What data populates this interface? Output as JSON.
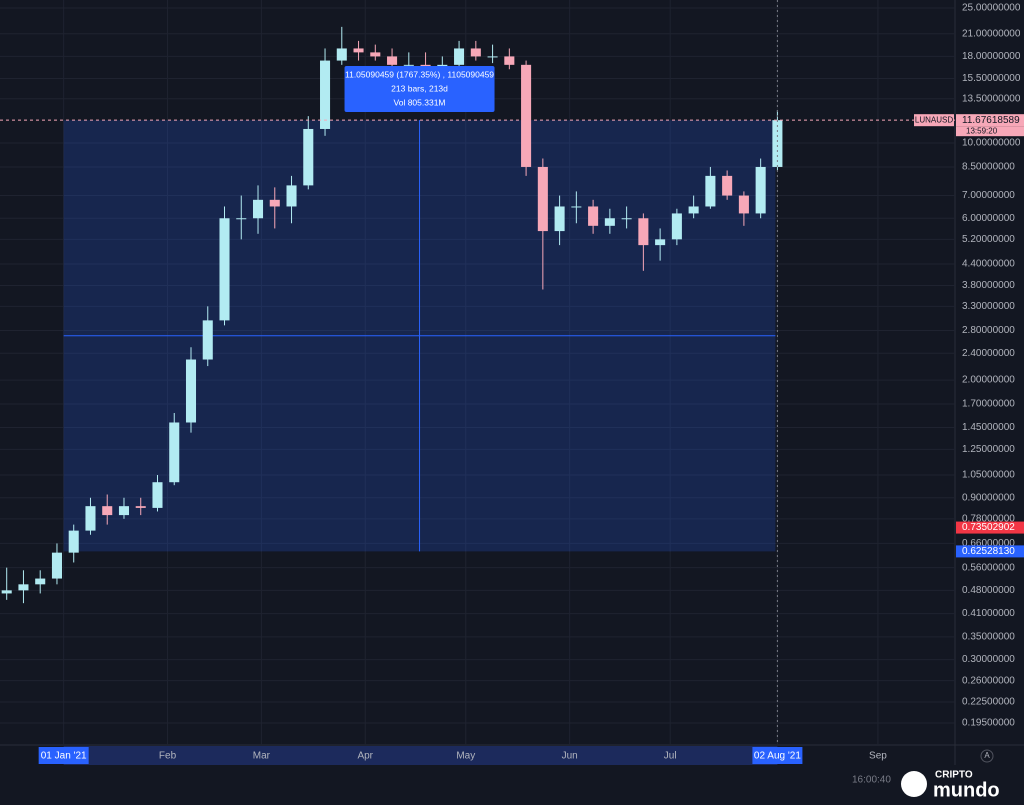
{
  "chart_data": {
    "type": "candlestick",
    "symbol": "LUNAUSD",
    "log_scale": true,
    "grid": true,
    "up_color": "#b2ebf2",
    "down_color": "#f7a8b8",
    "x": [
      "2020-12-15",
      "2020-12-20",
      "2020-12-25",
      "2020-12-30",
      "2021-01-04",
      "2021-01-09",
      "2021-01-14",
      "2021-01-19",
      "2021-01-24",
      "2021-01-29",
      "2021-02-03",
      "2021-02-08",
      "2021-02-13",
      "2021-02-18",
      "2021-02-23",
      "2021-02-28",
      "2021-03-05",
      "2021-03-10",
      "2021-03-15",
      "2021-03-20",
      "2021-03-25",
      "2021-03-30",
      "2021-04-04",
      "2021-04-09",
      "2021-04-14",
      "2021-04-19",
      "2021-04-24",
      "2021-04-29",
      "2021-05-04",
      "2021-05-09",
      "2021-05-14",
      "2021-05-19",
      "2021-05-24",
      "2021-05-29",
      "2021-06-03",
      "2021-06-08",
      "2021-06-13",
      "2021-06-18",
      "2021-06-23",
      "2021-06-28",
      "2021-07-03",
      "2021-07-08",
      "2021-07-13",
      "2021-07-18",
      "2021-07-23",
      "2021-07-28",
      "2021-08-02"
    ],
    "open": [
      0.47,
      0.48,
      0.5,
      0.52,
      0.62,
      0.72,
      0.85,
      0.8,
      0.85,
      0.84,
      1,
      1.5,
      2.3,
      3,
      6,
      6,
      6.8,
      6.5,
      7.5,
      11,
      17.5,
      19,
      18.5,
      18,
      17,
      17,
      16.5,
      17,
      19,
      18,
      18,
      17,
      8.5,
      5.5,
      6.5,
      6.5,
      5.7,
      6,
      6,
      5,
      5.2,
      6.2,
      6.5,
      8,
      7,
      6.2,
      8.5
    ],
    "high": [
      0.56,
      0.55,
      0.55,
      0.66,
      0.75,
      0.9,
      0.92,
      0.9,
      0.9,
      1.05,
      1.6,
      2.5,
      3.3,
      6.5,
      7,
      7.5,
      7.4,
      8,
      12,
      19,
      22,
      20,
      19.5,
      19,
      18.5,
      18.5,
      18,
      20,
      20,
      19.5,
      19,
      17.5,
      9,
      7,
      7.2,
      6.8,
      6.4,
      6.5,
      6.2,
      5.6,
      6.4,
      7,
      8.5,
      8.3,
      7.2,
      9,
      12.5
    ],
    "low": [
      0.45,
      0.44,
      0.47,
      0.5,
      0.58,
      0.7,
      0.75,
      0.78,
      0.8,
      0.82,
      0.98,
      1.4,
      2.2,
      2.9,
      5.2,
      5.4,
      5.6,
      5.8,
      7.3,
      10.5,
      17,
      17.5,
      17.5,
      16.5,
      16.3,
      16,
      16.2,
      16.8,
      17.5,
      17.2,
      16.5,
      8,
      3.7,
      5,
      5.8,
      5.4,
      5.4,
      5.6,
      4.2,
      4.5,
      5,
      6,
      6.4,
      6.8,
      5.7,
      6,
      8.3
    ],
    "close": [
      0.48,
      0.5,
      0.52,
      0.62,
      0.72,
      0.85,
      0.8,
      0.85,
      0.84,
      1,
      1.5,
      2.3,
      3,
      6,
      6,
      6.8,
      6.5,
      7.5,
      11,
      17.5,
      19,
      18.5,
      18,
      17,
      17,
      16.5,
      17,
      19,
      18,
      18,
      17,
      8.5,
      5.5,
      6.5,
      6.5,
      5.7,
      6,
      6,
      5,
      5.2,
      6.2,
      6.5,
      8,
      7,
      6.2,
      8.5,
      11.68
    ],
    "xlim": [
      "2020-12-13",
      "2021-09-24"
    ],
    "xticks": [
      {
        "value": "2021-01-01",
        "label": "01 Jan '21"
      },
      {
        "value": "2021-02-01",
        "label": "Feb"
      },
      {
        "value": "2021-03-01",
        "label": "Mar"
      },
      {
        "value": "2021-04-01",
        "label": "Apr"
      },
      {
        "value": "2021-05-01",
        "label": "May"
      },
      {
        "value": "2021-06-01",
        "label": "Jun"
      },
      {
        "value": "2021-07-01",
        "label": "Jul"
      },
      {
        "value": "2021-08-02",
        "label": "02 Aug '21"
      },
      {
        "value": "2021-09-01",
        "label": "Sep"
      }
    ],
    "ylim": [
      0.168,
      26.4
    ],
    "yticks": [
      {
        "value": 25,
        "label": "25.00000000"
      },
      {
        "value": 21,
        "label": "21.00000000"
      },
      {
        "value": 18,
        "label": "18.00000000"
      },
      {
        "value": 15.5,
        "label": "15.50000000"
      },
      {
        "value": 13.5,
        "label": "13.50000000"
      },
      {
        "value": 10,
        "label": "10.00000000"
      },
      {
        "value": 8.5,
        "label": "8.50000000"
      },
      {
        "value": 7,
        "label": "7.00000000"
      },
      {
        "value": 6,
        "label": "6.00000000"
      },
      {
        "value": 5.2,
        "label": "5.20000000"
      },
      {
        "value": 4.4,
        "label": "4.40000000"
      },
      {
        "value": 3.8,
        "label": "3.80000000"
      },
      {
        "value": 3.3,
        "label": "3.30000000"
      },
      {
        "value": 2.8,
        "label": "2.80000000"
      },
      {
        "value": 2.4,
        "label": "2.40000000"
      },
      {
        "value": 2,
        "label": "2.00000000"
      },
      {
        "value": 1.7,
        "label": "1.70000000"
      },
      {
        "value": 1.45,
        "label": "1.45000000"
      },
      {
        "value": 1.25,
        "label": "1.25000000"
      },
      {
        "value": 1.05,
        "label": "1.05000000"
      },
      {
        "value": 0.9,
        "label": "0.90000000"
      },
      {
        "value": 0.78,
        "label": "0.78000000"
      },
      {
        "value": 0.66,
        "label": "0.66000000"
      },
      {
        "value": 0.56,
        "label": "0.56000000"
      },
      {
        "value": 0.48,
        "label": "0.48000000"
      },
      {
        "value": 0.41,
        "label": "0.41000000"
      },
      {
        "value": 0.35,
        "label": "0.35000000"
      },
      {
        "value": 0.3,
        "label": "0.30000000"
      },
      {
        "value": 0.26,
        "label": "0.26000000"
      },
      {
        "value": 0.225,
        "label": "0.22500000"
      },
      {
        "value": 0.195,
        "label": "0.19500000"
      }
    ],
    "last_price": 11.67618589,
    "countdown": "13:59:20",
    "price_tags": [
      {
        "value": 0.73502902,
        "label": "0.73502902",
        "color": "#f23645"
      },
      {
        "value": 0.6252813,
        "label": "0.62528130",
        "color": "#2962ff"
      }
    ],
    "measure": [
      "11.05090459 (1767.35%) , 1105090459",
      "213 bars, 213d",
      "Vol 805.331M"
    ]
  },
  "footer": {
    "time": "16:00:40",
    "watermark": [
      "CRIPTO",
      "mundo"
    ]
  }
}
